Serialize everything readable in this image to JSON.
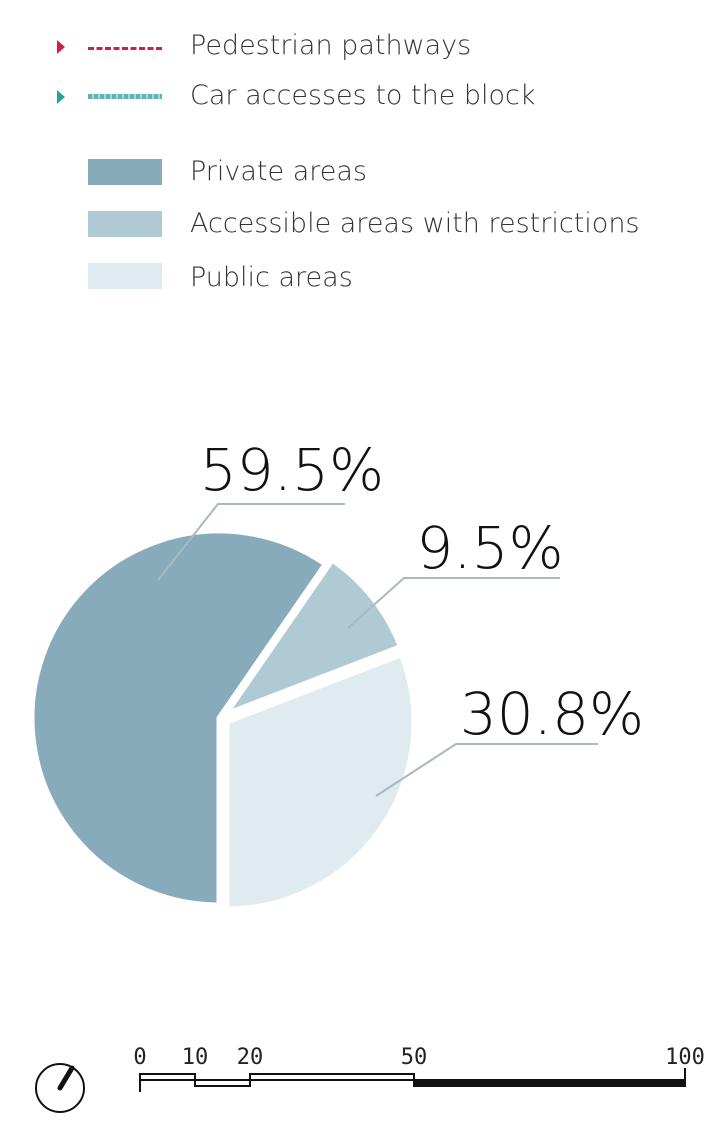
{
  "legend": {
    "lines": [
      {
        "label": "Pedestrian pathways",
        "color": "#cc2244",
        "style": "dashed",
        "marker_color": "#cc2244"
      },
      {
        "label": "Car accesses to the block",
        "color": "#5fb3b3",
        "style": "dotted-band",
        "marker_color": "#2aa0a0"
      }
    ],
    "areas": [
      {
        "label": "Private areas",
        "color": "#88abbb"
      },
      {
        "label": "Accessible areas with restrictions",
        "color": "#afcad3"
      },
      {
        "label": "Public areas",
        "color": "#dfebee"
      }
    ]
  },
  "chart_data": {
    "type": "pie",
    "title": "",
    "slices": [
      {
        "name": "Private areas",
        "value": 59.5,
        "label": "59.5%",
        "color": "#88abbb"
      },
      {
        "name": "Accessible areas with restrictions",
        "value": 9.5,
        "label": "9.5%",
        "color": "#afcad3"
      },
      {
        "name": "Public areas",
        "value": 30.8,
        "label": "30.8%",
        "color": "#dfebee"
      }
    ]
  },
  "scale_bar": {
    "ticks": [
      "0",
      "10",
      "20",
      "50",
      "100"
    ]
  }
}
